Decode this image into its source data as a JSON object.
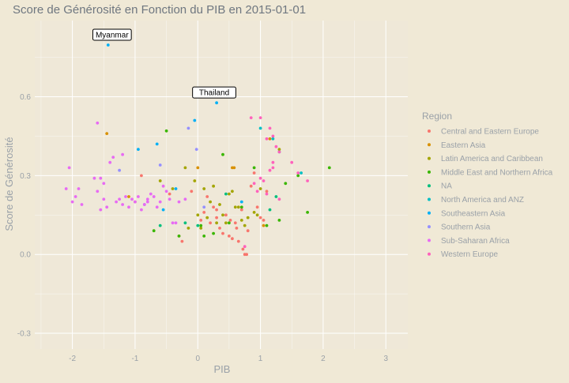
{
  "colors": {
    "background": "#f0e9d6",
    "panel": "#efe8d8",
    "grid": "#ffffff",
    "text": "#9aa1a8",
    "title": "#6f7780"
  },
  "chart_data": {
    "type": "scatter",
    "title": "Score de Générosité en Fonction du PIB en 2015-01-01",
    "xlabel": "PIB",
    "ylabel": "Score de Générosité",
    "xlim": [
      -2.6,
      3.35
    ],
    "ylim": [
      -0.36,
      0.89
    ],
    "xticks": [
      -2,
      -1,
      0,
      1,
      2,
      3
    ],
    "yticks": [
      -0.3,
      0.0,
      0.3,
      0.6
    ],
    "ytick_labels": [
      "-0.3",
      "0.0",
      "0.3",
      "0.6"
    ],
    "grid": true,
    "legend": {
      "title": "Region",
      "position": "right"
    },
    "annotations": [
      {
        "text": "Myanmar",
        "x": -1.43,
        "y": 0.797
      },
      {
        "text": "Thailand",
        "x": 0.3,
        "y": 0.577
      }
    ],
    "series": [
      {
        "name": "Central and Eastern Europe",
        "color": "#F8766D",
        "points": [
          [
            -0.9,
            0.3
          ],
          [
            -1.0,
            0.2
          ],
          [
            -0.45,
            0.23
          ],
          [
            -0.3,
            0.07
          ],
          [
            -0.25,
            0.05
          ],
          [
            -0.1,
            0.24
          ],
          [
            0.05,
            0.13
          ],
          [
            0.1,
            0.16
          ],
          [
            0.15,
            0.22
          ],
          [
            0.2,
            0.12
          ],
          [
            0.25,
            0.18
          ],
          [
            0.3,
            0.17
          ],
          [
            0.35,
            0.1
          ],
          [
            0.4,
            0.08
          ],
          [
            0.45,
            0.15
          ],
          [
            0.5,
            0.07
          ],
          [
            0.55,
            0.06
          ],
          [
            0.6,
            0.12
          ],
          [
            0.65,
            0.05
          ],
          [
            0.7,
            0.17
          ],
          [
            0.72,
            0.02
          ],
          [
            0.75,
            0.0
          ],
          [
            0.78,
            0.0
          ],
          [
            0.8,
            0.09
          ],
          [
            0.85,
            0.26
          ],
          [
            0.9,
            0.31
          ],
          [
            0.95,
            0.18
          ],
          [
            1.0,
            0.14
          ],
          [
            1.05,
            0.13
          ],
          [
            1.1,
            0.24
          ],
          [
            0.3,
            0.14
          ],
          [
            0.52,
            0.13
          ],
          [
            0.62,
            0.1
          ]
        ]
      },
      {
        "name": "Eastern Asia",
        "color": "#D89000",
        "points": [
          [
            -1.45,
            0.46
          ],
          [
            -1.1,
            0.22
          ],
          [
            0.0,
            0.33
          ],
          [
            0.58,
            0.33
          ],
          [
            0.55,
            0.33
          ],
          [
            1.05,
            0.11
          ],
          [
            1.15,
            0.44
          ]
        ]
      },
      {
        "name": "Latin America and Caribbean",
        "color": "#A3A500",
        "points": [
          [
            -0.6,
            0.28
          ],
          [
            -0.2,
            0.33
          ],
          [
            -0.15,
            0.1
          ],
          [
            -0.05,
            0.28
          ],
          [
            0.0,
            0.15
          ],
          [
            0.05,
            0.1
          ],
          [
            0.1,
            0.25
          ],
          [
            0.2,
            0.2
          ],
          [
            0.25,
            0.26
          ],
          [
            0.3,
            0.12
          ],
          [
            0.35,
            0.19
          ],
          [
            0.4,
            0.15
          ],
          [
            0.45,
            0.12
          ],
          [
            0.5,
            0.23
          ],
          [
            0.55,
            0.24
          ],
          [
            0.6,
            0.18
          ],
          [
            0.65,
            0.18
          ],
          [
            0.7,
            0.13
          ],
          [
            0.75,
            0.11
          ],
          [
            0.8,
            0.14
          ],
          [
            0.9,
            0.16
          ],
          [
            0.95,
            0.15
          ],
          [
            1.0,
            0.25
          ],
          [
            1.3,
            0.4
          ],
          [
            -0.4,
            0.25
          ],
          [
            0.15,
            0.14
          ]
        ]
      },
      {
        "name": "Middle East and Northern Africa",
        "color": "#39B600",
        "points": [
          [
            -0.7,
            0.09
          ],
          [
            -0.5,
            0.47
          ],
          [
            -0.3,
            0.07
          ],
          [
            0.05,
            0.11
          ],
          [
            0.1,
            0.07
          ],
          [
            0.25,
            0.08
          ],
          [
            0.4,
            0.38
          ],
          [
            0.5,
            0.12
          ],
          [
            0.7,
            0.18
          ],
          [
            0.9,
            0.33
          ],
          [
            1.1,
            0.11
          ],
          [
            1.3,
            0.13
          ],
          [
            1.4,
            0.27
          ],
          [
            1.6,
            0.3
          ],
          [
            1.75,
            0.16
          ],
          [
            2.1,
            0.33
          ]
        ]
      },
      {
        "name": "NA",
        "color": "#00BF7D",
        "points": [
          [
            -0.6,
            0.11
          ],
          [
            -0.2,
            0.12
          ],
          [
            0.0,
            0.11
          ],
          [
            0.45,
            0.23
          ],
          [
            1.15,
            0.17
          ],
          [
            1.25,
            0.22
          ]
        ]
      },
      {
        "name": "North America and ANZ",
        "color": "#00BFC4",
        "points": [
          [
            1.0,
            0.48
          ],
          [
            1.2,
            0.44
          ],
          [
            1.3,
            0.39
          ],
          [
            1.65,
            0.31
          ]
        ]
      },
      {
        "name": "Southeastern Asia",
        "color": "#00B0F6",
        "points": [
          [
            -1.43,
            0.797
          ],
          [
            0.3,
            0.577
          ],
          [
            -0.95,
            0.4
          ],
          [
            -0.65,
            0.42
          ],
          [
            -0.55,
            0.17
          ],
          [
            -0.35,
            0.25
          ],
          [
            -0.05,
            0.51
          ],
          [
            0.7,
            0.2
          ]
        ]
      },
      {
        "name": "Southern Asia",
        "color": "#9590FF",
        "points": [
          [
            -1.25,
            0.32
          ],
          [
            -0.85,
            0.19
          ],
          [
            -0.6,
            0.34
          ],
          [
            -0.15,
            0.48
          ],
          [
            -0.02,
            0.4
          ],
          [
            0.1,
            0.18
          ]
        ]
      },
      {
        "name": "Sub-Saharan Africa",
        "color": "#E76BF3",
        "points": [
          [
            -2.1,
            0.25
          ],
          [
            -2.05,
            0.33
          ],
          [
            -2.0,
            0.2
          ],
          [
            -1.95,
            0.22
          ],
          [
            -1.9,
            0.25
          ],
          [
            -1.85,
            0.19
          ],
          [
            -1.6,
            0.24
          ],
          [
            -1.55,
            0.17
          ],
          [
            -1.5,
            0.21
          ],
          [
            -1.45,
            0.18
          ],
          [
            -1.4,
            0.35
          ],
          [
            -1.35,
            0.37
          ],
          [
            -1.3,
            0.2
          ],
          [
            -1.25,
            0.21
          ],
          [
            -1.2,
            0.19
          ],
          [
            -1.15,
            0.22
          ],
          [
            -1.1,
            0.18
          ],
          [
            -1.05,
            0.21
          ],
          [
            -1.0,
            0.2
          ],
          [
            -0.95,
            0.22
          ],
          [
            -0.9,
            0.17
          ],
          [
            -0.85,
            0.19
          ],
          [
            -0.8,
            0.2
          ],
          [
            -0.75,
            0.23
          ],
          [
            -0.7,
            0.22
          ],
          [
            -0.65,
            0.18
          ],
          [
            -0.6,
            0.2
          ],
          [
            -0.55,
            0.26
          ],
          [
            -0.5,
            0.24
          ],
          [
            -0.45,
            0.21
          ],
          [
            -0.4,
            0.12
          ],
          [
            -0.35,
            0.12
          ],
          [
            -0.3,
            0.2
          ],
          [
            -0.2,
            0.21
          ],
          [
            -1.6,
            0.5
          ],
          [
            -1.55,
            0.29
          ],
          [
            -1.65,
            0.29
          ],
          [
            -1.5,
            0.27
          ],
          [
            -1.2,
            0.38
          ],
          [
            -0.8,
            0.21
          ]
        ]
      },
      {
        "name": "Western Europe",
        "color": "#FF62BC",
        "points": [
          [
            0.85,
            0.52
          ],
          [
            1.0,
            0.52
          ],
          [
            1.1,
            0.44
          ],
          [
            1.15,
            0.48
          ],
          [
            1.2,
            0.45
          ],
          [
            1.25,
            0.41
          ],
          [
            1.3,
            0.39
          ],
          [
            1.5,
            0.35
          ],
          [
            1.6,
            0.31
          ],
          [
            1.75,
            0.28
          ],
          [
            1.2,
            0.35
          ],
          [
            1.1,
            0.23
          ],
          [
            1.0,
            0.29
          ],
          [
            0.95,
            0.24
          ],
          [
            1.05,
            0.28
          ],
          [
            1.15,
            0.32
          ],
          [
            0.9,
            0.27
          ],
          [
            1.3,
            0.21
          ],
          [
            1.2,
            0.33
          ],
          [
            0.75,
            0.03
          ]
        ]
      }
    ]
  }
}
